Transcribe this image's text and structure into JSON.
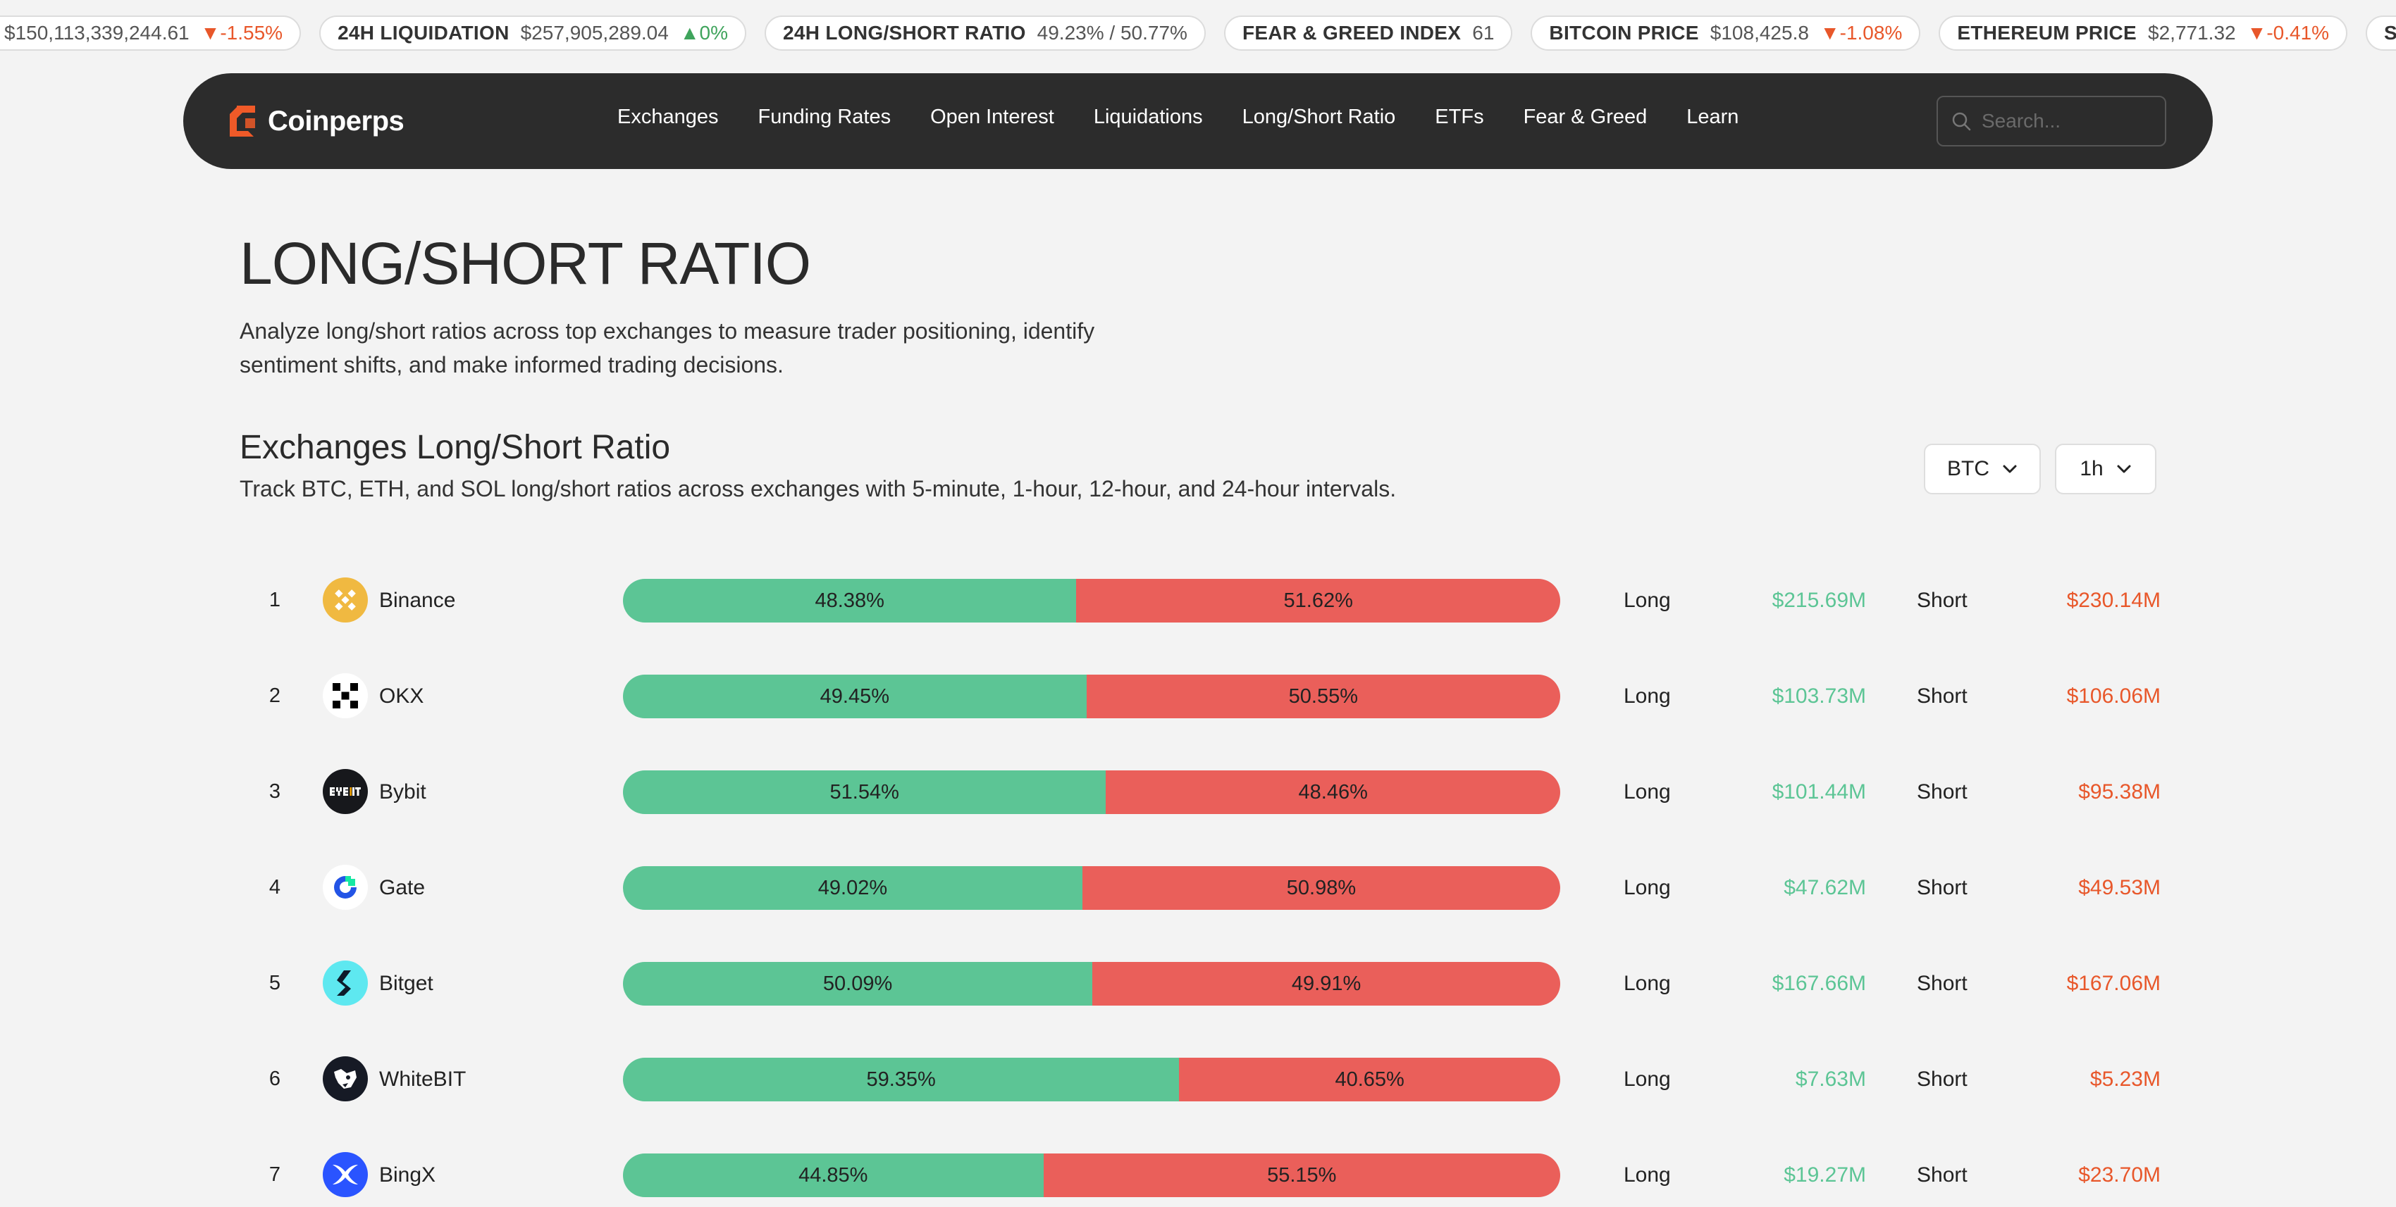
{
  "ticker": [
    {
      "label": "",
      "value": "$150,113,339,244.61",
      "change": "▼-1.55%",
      "dir": "down"
    },
    {
      "label": "24H LIQUIDATION",
      "value": "$257,905,289.04",
      "change": "▲0%",
      "dir": "up"
    },
    {
      "label": "24H LONG/SHORT RATIO",
      "value": "49.23% / 50.77%",
      "change": "",
      "dir": ""
    },
    {
      "label": "FEAR & GREED INDEX",
      "value": "61",
      "change": "",
      "dir": ""
    },
    {
      "label": "BITCOIN PRICE",
      "value": "$108,425.8",
      "change": "▼-1.08%",
      "dir": "down"
    },
    {
      "label": "ETHEREUM PRICE",
      "value": "$2,771.32",
      "change": "▼-0.41%",
      "dir": "down"
    },
    {
      "label": "SOLANA PRI",
      "value": "",
      "change": "",
      "dir": ""
    }
  ],
  "nav": {
    "brand": "Coinperps",
    "menu": [
      "Exchanges",
      "Funding Rates",
      "Open Interest",
      "Liquidations",
      "Long/Short Ratio",
      "ETFs",
      "Fear & Greed",
      "Learn"
    ],
    "search_placeholder": "Search..."
  },
  "hero": {
    "title": "LONG/SHORT RATIO",
    "description": "Analyze long/short ratios across top exchanges to measure trader positioning, identify sentiment shifts, and make informed trading decisions."
  },
  "section": {
    "title": "Exchanges Long/Short Ratio",
    "subtitle": "Track BTC, ETH, and SOL long/short ratios across exchanges with 5-minute, 1-hour, 12-hour, and 24-hour intervals.",
    "coin": "BTC",
    "interval": "1h"
  },
  "labels": {
    "long": "Long",
    "short": "Short"
  },
  "exchanges": [
    {
      "rank": "1",
      "name": "Binance",
      "long_pct": "48.38%",
      "short_pct": "51.62%",
      "long_val": "$215.69M",
      "short_val": "$230.14M",
      "icon": "binance-icon"
    },
    {
      "rank": "2",
      "name": "OKX",
      "long_pct": "49.45%",
      "short_pct": "50.55%",
      "long_val": "$103.73M",
      "short_val": "$106.06M",
      "icon": "okx-icon"
    },
    {
      "rank": "3",
      "name": "Bybit",
      "long_pct": "51.54%",
      "short_pct": "48.46%",
      "long_val": "$101.44M",
      "short_val": "$95.38M",
      "icon": "bybit-icon"
    },
    {
      "rank": "4",
      "name": "Gate",
      "long_pct": "49.02%",
      "short_pct": "50.98%",
      "long_val": "$47.62M",
      "short_val": "$49.53M",
      "icon": "gate-icon"
    },
    {
      "rank": "5",
      "name": "Bitget",
      "long_pct": "50.09%",
      "short_pct": "49.91%",
      "long_val": "$167.66M",
      "short_val": "$167.06M",
      "icon": "bitget-icon"
    },
    {
      "rank": "6",
      "name": "WhiteBIT",
      "long_pct": "59.35%",
      "short_pct": "40.65%",
      "long_val": "$7.63M",
      "short_val": "$5.23M",
      "icon": "whitebit-icon"
    },
    {
      "rank": "7",
      "name": "BingX",
      "long_pct": "44.85%",
      "short_pct": "55.15%",
      "long_val": "$19.27M",
      "short_val": "$23.70M",
      "icon": "bingx-icon"
    }
  ],
  "colors": {
    "long": "#5cc595",
    "short": "#ea5f5a",
    "short_text": "#e8572a",
    "nav_bg": "#2c2c2c",
    "brand": "#f05a28"
  }
}
